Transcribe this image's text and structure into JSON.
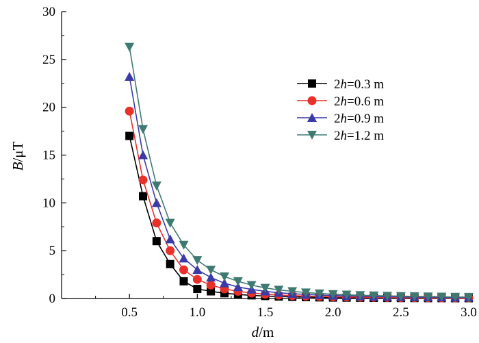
{
  "chart_data": {
    "type": "line",
    "xlabel": {
      "var": "d",
      "unit": "/m"
    },
    "ylabel": {
      "var": "B",
      "unit": "/μT"
    },
    "xlim": [
      0,
      3.0
    ],
    "ylim": [
      0,
      30
    ],
    "xticks": [
      0.5,
      1.0,
      1.5,
      2.0,
      2.5,
      3.0
    ],
    "xtick_labels": [
      "0.5",
      "1.0",
      "1.5",
      "2.0",
      "2.5",
      "3.0"
    ],
    "yticks": [
      0,
      5,
      10,
      15,
      20,
      25,
      30
    ],
    "ytick_labels": [
      "0",
      "5",
      "10",
      "15",
      "20",
      "25",
      "30"
    ],
    "grid": false,
    "legend_position": "upper-right",
    "x": [
      0.5,
      0.6,
      0.7,
      0.8,
      0.9,
      1.0,
      1.1,
      1.2,
      1.3,
      1.4,
      1.5,
      1.6,
      1.7,
      1.8,
      1.9,
      2.0,
      2.1,
      2.2,
      2.3,
      2.4,
      2.5,
      2.6,
      2.7,
      2.8,
      2.9,
      3.0
    ],
    "series": [
      {
        "name": "2h=0.3 m",
        "name_parts": {
          "prefix": "2",
          "var": "h",
          "suffix": "=0.3 m"
        },
        "color": "#000000",
        "marker": "square",
        "values": [
          17.0,
          10.7,
          6.0,
          3.6,
          1.8,
          1.0,
          0.75,
          0.55,
          0.42,
          0.33,
          0.26,
          0.21,
          0.17,
          0.14,
          0.12,
          0.1,
          0.09,
          0.08,
          0.07,
          0.06,
          0.05,
          0.05,
          0.04,
          0.04,
          0.03,
          0.03
        ]
      },
      {
        "name": "2h=0.6 m",
        "name_parts": {
          "prefix": "2",
          "var": "h",
          "suffix": "=0.6 m"
        },
        "color": "#e8312a",
        "marker": "circle",
        "values": [
          19.6,
          12.4,
          7.9,
          5.0,
          3.0,
          2.0,
          1.4,
          1.0,
          0.75,
          0.57,
          0.45,
          0.36,
          0.3,
          0.25,
          0.21,
          0.18,
          0.16,
          0.14,
          0.12,
          0.11,
          0.1,
          0.09,
          0.08,
          0.07,
          0.06,
          0.06
        ]
      },
      {
        "name": "2h=0.9 m",
        "name_parts": {
          "prefix": "2",
          "var": "h",
          "suffix": "=0.9 m"
        },
        "color": "#3a3aa8",
        "marker": "triangle-up",
        "values": [
          23.2,
          15.0,
          10.0,
          6.2,
          4.2,
          3.0,
          2.2,
          1.6,
          1.2,
          0.95,
          0.75,
          0.6,
          0.5,
          0.42,
          0.36,
          0.31,
          0.27,
          0.24,
          0.21,
          0.19,
          0.17,
          0.15,
          0.14,
          0.13,
          0.12,
          0.11
        ]
      },
      {
        "name": "2h=1.2 m",
        "name_parts": {
          "prefix": "2",
          "var": "h",
          "suffix": "=1.2 m"
        },
        "color": "#3f7a72",
        "marker": "triangle-down",
        "values": [
          26.3,
          17.7,
          11.8,
          7.9,
          5.6,
          4.0,
          3.0,
          2.3,
          1.8,
          1.4,
          1.1,
          0.9,
          0.75,
          0.62,
          0.52,
          0.45,
          0.39,
          0.34,
          0.3,
          0.27,
          0.24,
          0.22,
          0.2,
          0.18,
          0.16,
          0.15
        ]
      }
    ]
  }
}
